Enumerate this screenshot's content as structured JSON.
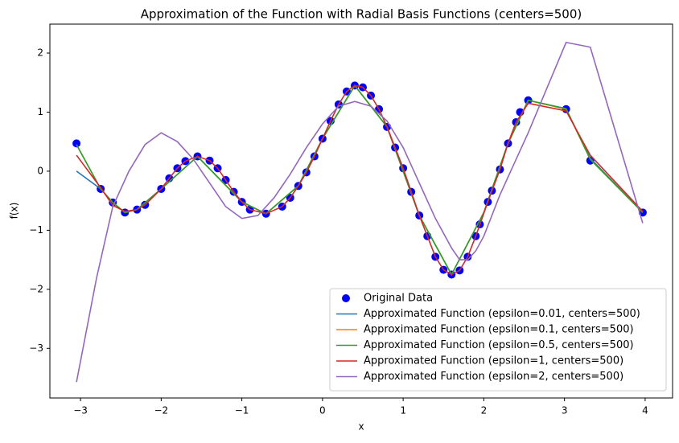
{
  "chart_data": {
    "type": "line",
    "title": "Approximation of the Function with Radial Basis Functions (centers=500)",
    "x_label": "x",
    "y_label": "f(x)",
    "xlim": [
      -3.38,
      4.34
    ],
    "ylim": [
      -3.84,
      2.49
    ],
    "xticks": [
      {
        "value": -3,
        "label": "−3"
      },
      {
        "value": -2,
        "label": "−2"
      },
      {
        "value": -1,
        "label": "−1"
      },
      0,
      1,
      2,
      3,
      4
    ],
    "yticks": [
      {
        "value": -3,
        "label": "−3"
      },
      {
        "value": -2,
        "label": "−2"
      },
      {
        "value": -1,
        "label": "−1"
      },
      0,
      1,
      2
    ],
    "legend": "lower right",
    "series": [
      {
        "name": "Original Data",
        "type": "scatter",
        "color": "#0000ff",
        "x": [
          -3.05,
          -2.75,
          -2.6,
          -2.45,
          -2.3,
          -2.2,
          -2.0,
          -1.9,
          -1.8,
          -1.7,
          -1.55,
          -1.4,
          -1.3,
          -1.2,
          -1.1,
          -1.0,
          -0.9,
          -0.7,
          -0.5,
          -0.4,
          -0.3,
          -0.2,
          -0.1,
          0.0,
          0.1,
          0.2,
          0.3,
          0.4,
          0.5,
          0.6,
          0.7,
          0.8,
          0.9,
          1.0,
          1.1,
          1.2,
          1.3,
          1.4,
          1.5,
          1.6,
          1.7,
          1.8,
          1.9,
          1.95,
          2.05,
          2.1,
          2.2,
          2.3,
          2.4,
          2.45,
          2.55,
          3.02,
          3.32,
          3.97
        ],
        "values": [
          0.47,
          -0.3,
          -0.53,
          -0.7,
          -0.65,
          -0.57,
          -0.3,
          -0.12,
          0.05,
          0.17,
          0.25,
          0.18,
          0.05,
          -0.15,
          -0.35,
          -0.52,
          -0.65,
          -0.72,
          -0.6,
          -0.45,
          -0.25,
          -0.02,
          0.25,
          0.55,
          0.85,
          1.13,
          1.35,
          1.45,
          1.42,
          1.28,
          1.05,
          0.75,
          0.4,
          0.05,
          -0.35,
          -0.75,
          -1.1,
          -1.45,
          -1.67,
          -1.75,
          -1.68,
          -1.45,
          -1.1,
          -0.9,
          -0.52,
          -0.33,
          0.03,
          0.47,
          0.83,
          1.0,
          1.2,
          1.05,
          0.18,
          -0.7
        ]
      },
      {
        "name": "Approximated Function (epsilon=0.01, centers=500)",
        "color": "#1f77b4",
        "x": [
          -3.05,
          -2.75,
          -2.6,
          -2.45,
          -2.3,
          -2.0,
          -1.55,
          -1.0,
          -0.7,
          -0.3,
          0.0,
          0.4,
          0.8,
          1.2,
          1.6,
          2.0,
          2.3,
          2.55,
          3.02,
          3.32,
          3.97
        ],
        "values": [
          0.0,
          -0.3,
          -0.53,
          -0.7,
          -0.65,
          -0.3,
          0.25,
          -0.52,
          -0.72,
          -0.25,
          0.55,
          1.45,
          0.75,
          -0.75,
          -1.75,
          -0.7,
          0.47,
          1.2,
          1.05,
          0.22,
          -0.7
        ]
      },
      {
        "name": "Approximated Function (epsilon=0.1, centers=500)",
        "color": "#ff7f0e",
        "x": [
          -3.05,
          -2.75,
          -2.6,
          -2.45,
          -2.3,
          -2.0,
          -1.55,
          -1.0,
          -0.7,
          -0.3,
          0.0,
          0.4,
          0.8,
          1.2,
          1.6,
          2.0,
          2.3,
          2.55,
          3.02,
          3.32,
          3.97
        ],
        "values": [
          0.45,
          -0.3,
          -0.53,
          -0.7,
          -0.65,
          -0.3,
          0.25,
          -0.52,
          -0.72,
          -0.25,
          0.55,
          1.45,
          0.75,
          -0.75,
          -1.75,
          -0.7,
          0.47,
          1.2,
          1.05,
          0.2,
          -0.7
        ]
      },
      {
        "name": "Approximated Function (epsilon=0.5, centers=500)",
        "color": "#2ca02c",
        "x": [
          -3.05,
          -2.75,
          -2.6,
          -2.45,
          -2.3,
          -2.0,
          -1.55,
          -1.0,
          -0.7,
          -0.3,
          0.0,
          0.4,
          0.8,
          1.2,
          1.6,
          2.0,
          2.3,
          2.55,
          3.02,
          3.32,
          3.97
        ],
        "values": [
          0.45,
          -0.3,
          -0.53,
          -0.7,
          -0.65,
          -0.3,
          0.25,
          -0.52,
          -0.72,
          -0.25,
          0.55,
          1.45,
          0.75,
          -0.75,
          -1.75,
          -0.7,
          0.47,
          1.2,
          1.06,
          0.2,
          -0.7
        ]
      },
      {
        "name": "Approximated Function (epsilon=1, centers=500)",
        "color": "#d62728",
        "x": [
          -3.05,
          -2.75,
          -2.6,
          -2.45,
          -2.3,
          -2.2,
          -2.0,
          -1.9,
          -1.8,
          -1.7,
          -1.55,
          -1.4,
          -1.3,
          -1.2,
          -1.1,
          -1.0,
          -0.9,
          -0.7,
          -0.5,
          -0.4,
          -0.3,
          -0.2,
          -0.1,
          0.0,
          0.1,
          0.2,
          0.3,
          0.4,
          0.5,
          0.6,
          0.7,
          0.8,
          0.9,
          1.0,
          1.1,
          1.2,
          1.3,
          1.4,
          1.5,
          1.6,
          1.7,
          1.8,
          1.9,
          2.05,
          2.2,
          2.3,
          2.4,
          2.55,
          3.02,
          3.32,
          3.97
        ],
        "values": [
          0.27,
          -0.28,
          -0.58,
          -0.68,
          -0.65,
          -0.57,
          -0.3,
          -0.12,
          0.05,
          0.17,
          0.25,
          0.18,
          0.05,
          -0.15,
          -0.35,
          -0.52,
          -0.65,
          -0.72,
          -0.6,
          -0.45,
          -0.25,
          -0.02,
          0.25,
          0.55,
          0.85,
          1.13,
          1.35,
          1.45,
          1.42,
          1.28,
          1.05,
          0.75,
          0.4,
          0.05,
          -0.35,
          -0.75,
          -1.1,
          -1.45,
          -1.67,
          -1.75,
          -1.68,
          -1.45,
          -1.1,
          -0.52,
          0.03,
          0.47,
          0.83,
          1.15,
          1.02,
          0.27,
          -0.68
        ]
      },
      {
        "name": "Approximated Function (epsilon=2, centers=500)",
        "color": "#9467bd",
        "x": [
          -3.05,
          -2.8,
          -2.6,
          -2.4,
          -2.2,
          -2.0,
          -1.8,
          -1.6,
          -1.4,
          -1.2,
          -1.0,
          -0.8,
          -0.6,
          -0.4,
          -0.2,
          0.0,
          0.2,
          0.4,
          0.6,
          0.8,
          1.0,
          1.2,
          1.4,
          1.6,
          1.7,
          1.8,
          1.9,
          2.0,
          2.2,
          2.55,
          3.02,
          3.32,
          3.97
        ],
        "values": [
          -3.57,
          -1.8,
          -0.6,
          0.0,
          0.45,
          0.65,
          0.5,
          0.2,
          -0.2,
          -0.6,
          -0.8,
          -0.75,
          -0.45,
          -0.05,
          0.4,
          0.8,
          1.1,
          1.18,
          1.1,
          0.85,
          0.4,
          -0.2,
          -0.8,
          -1.3,
          -1.5,
          -1.5,
          -1.35,
          -1.1,
          -0.4,
          0.65,
          2.18,
          2.1,
          -0.88
        ]
      }
    ]
  }
}
